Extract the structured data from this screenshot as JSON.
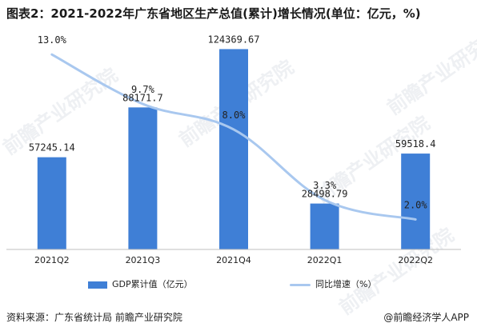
{
  "title": "图表2：2021-2022年广东省地区生产总值(累计)增长情况(单位：亿元，%)",
  "source": "资料来源：广东省统计局 前瞻产业研究院",
  "brand": "@前瞻经济学人APP",
  "watermark_text": "前瞻产业研究院",
  "colors": {
    "bar": "#3f7fd6",
    "line": "#a9c8ef"
  },
  "chart_data": {
    "type": "bar",
    "categories": [
      "2021Q2",
      "2021Q3",
      "2021Q4",
      "2022Q1",
      "2022Q2"
    ],
    "series": [
      {
        "name": "GDP累计值（亿元）",
        "type": "bar",
        "values": [
          57245.14,
          88171.7,
          124369.67,
          28498.79,
          59518.4
        ],
        "labels": [
          "57245.14",
          "88171.7",
          "124369.67",
          "28498.79",
          "59518.4"
        ]
      },
      {
        "name": "同比增速（%）",
        "type": "line",
        "values": [
          13.0,
          9.7,
          8.0,
          3.3,
          2.0
        ],
        "labels": [
          "13.0%",
          "9.7%",
          "8.0%",
          "3.3%",
          "2.0%"
        ]
      }
    ],
    "ylim_left": [
      0,
      135000
    ],
    "ylim_right": [
      0,
      14.5
    ],
    "grid": false,
    "legend": "bottom"
  }
}
